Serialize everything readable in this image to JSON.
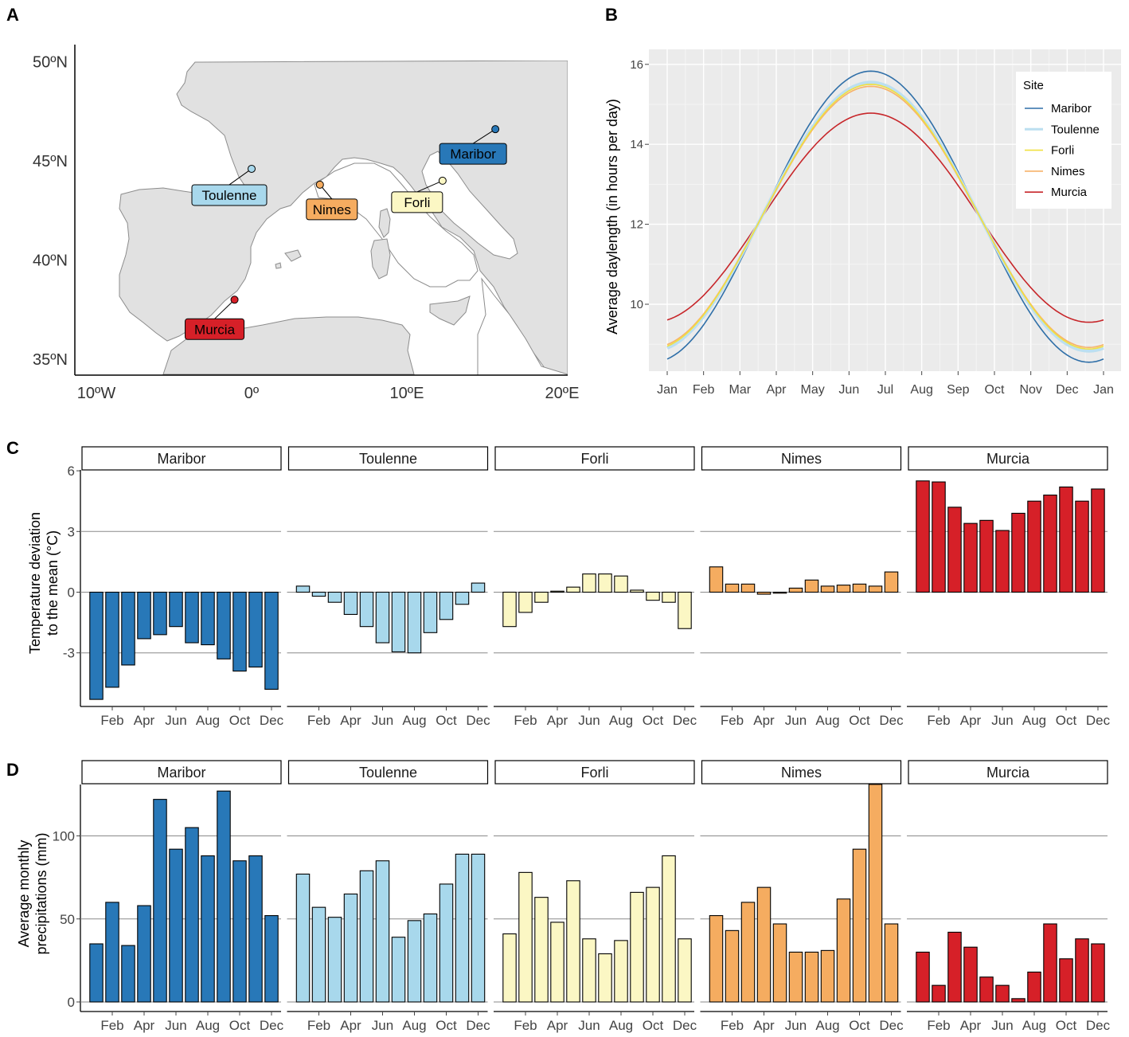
{
  "panels": {
    "a": "A",
    "b": "B",
    "c": "C",
    "d": "D"
  },
  "colors": {
    "Maribor": "#2878b8",
    "Toulenne": "#a8d8ec",
    "Forli": "#fbf7c4",
    "Nimes": "#f5ac60",
    "Murcia": "#d62028",
    "Toulenne_line": "#bcdff0",
    "Forli_line": "#f0e040",
    "Nimes_line": "#f7b26a",
    "Maribor_line": "#2f6fa8",
    "Murcia_line": "#c7262a",
    "land": "#e1e1e1",
    "border": "#8c8c8c",
    "grid_bg": "#ebebeb"
  },
  "map": {
    "lat_labels": [
      "50ºN",
      "45ºN",
      "40ºN",
      "35ºN"
    ],
    "lon_labels": [
      "10ºW",
      "0º",
      "10ºE",
      "20ºE"
    ],
    "sites": [
      {
        "name": "Maribor",
        "lat": 46.6,
        "lon": 15.7
      },
      {
        "name": "Toulenne",
        "lat": 44.6,
        "lon": 0.0
      },
      {
        "name": "Nimes",
        "lat": 43.8,
        "lon": 4.4
      },
      {
        "name": "Forli",
        "lat": 44.0,
        "lon": 12.3
      },
      {
        "name": "Murcia",
        "lat": 38.0,
        "lon": -1.1
      }
    ]
  },
  "chart_data": [
    {
      "type": "line",
      "panel": "B",
      "title": "",
      "ylabel": "Average daylength (in hours per day)",
      "xlabel": "",
      "x_ticks": [
        "Jan",
        "Feb",
        "Mar",
        "Apr",
        "May",
        "Jun",
        "Jul",
        "Aug",
        "Sep",
        "Oct",
        "Nov",
        "Dec",
        "Jan"
      ],
      "y_ticks": [
        "10",
        "12",
        "14",
        "16"
      ],
      "ylim": [
        8.3,
        16.4
      ],
      "legend_title": "Site",
      "legend_position": "top-right",
      "series": [
        {
          "name": "Maribor",
          "min": 8.55,
          "max": 15.83
        },
        {
          "name": "Toulenne",
          "min": 8.83,
          "max": 15.55
        },
        {
          "name": "Forli",
          "min": 8.88,
          "max": 15.5
        },
        {
          "name": "Nimes",
          "min": 8.92,
          "max": 15.45
        },
        {
          "name": "Murcia",
          "min": 9.55,
          "max": 14.78
        }
      ]
    },
    {
      "type": "bar",
      "panel": "C",
      "ylabel_lines": [
        "Temperature deviation",
        "to the mean (°C)"
      ],
      "y_ticks": [
        "-3",
        "0",
        "3",
        "6"
      ],
      "ylim": [
        -5.8,
        6.1
      ],
      "x_ticks": [
        "Feb",
        "Apr",
        "Jun",
        "Aug",
        "Oct",
        "Dec"
      ],
      "months": [
        "Jan",
        "Feb",
        "Mar",
        "Apr",
        "May",
        "Jun",
        "Jul",
        "Aug",
        "Sep",
        "Oct",
        "Nov",
        "Dec"
      ],
      "series": [
        {
          "name": "Maribor",
          "values": [
            -5.3,
            -4.7,
            -3.6,
            -2.3,
            -2.1,
            -1.7,
            -2.5,
            -2.6,
            -3.3,
            -3.9,
            -3.7,
            -4.8
          ]
        },
        {
          "name": "Toulenne",
          "values": [
            0.3,
            -0.2,
            -0.5,
            -1.1,
            -1.7,
            -2.5,
            -2.95,
            -3.0,
            -2.0,
            -1.35,
            -0.6,
            0.45
          ]
        },
        {
          "name": "Forli",
          "values": [
            -1.7,
            -1.0,
            -0.5,
            0.05,
            0.25,
            0.9,
            0.9,
            0.8,
            0.1,
            -0.4,
            -0.5,
            -1.8
          ]
        },
        {
          "name": "Nimes",
          "values": [
            1.25,
            0.4,
            0.4,
            -0.1,
            -0.05,
            0.2,
            0.6,
            0.3,
            0.35,
            0.4,
            0.3,
            1.0
          ]
        },
        {
          "name": "Murcia",
          "values": [
            5.5,
            5.45,
            4.2,
            3.4,
            3.55,
            3.05,
            3.9,
            4.5,
            4.8,
            5.2,
            4.5,
            5.1
          ]
        }
      ]
    },
    {
      "type": "bar",
      "panel": "D",
      "ylabel_lines": [
        "Average monthly",
        "precipitations (mm)"
      ],
      "y_ticks": [
        "0",
        "50",
        "100"
      ],
      "ylim": [
        -6,
        131
      ],
      "x_ticks": [
        "Feb",
        "Apr",
        "Jun",
        "Aug",
        "Oct",
        "Dec"
      ],
      "months": [
        "Jan",
        "Feb",
        "Mar",
        "Apr",
        "May",
        "Jun",
        "Jul",
        "Aug",
        "Sep",
        "Oct",
        "Nov",
        "Dec"
      ],
      "series": [
        {
          "name": "Maribor",
          "values": [
            35,
            60,
            34,
            58,
            122,
            92,
            105,
            88,
            127,
            85,
            88,
            52
          ]
        },
        {
          "name": "Toulenne",
          "values": [
            77,
            57,
            51,
            65,
            79,
            85,
            39,
            49,
            53,
            71,
            89,
            89
          ]
        },
        {
          "name": "Forli",
          "values": [
            41,
            78,
            63,
            48,
            73,
            38,
            29,
            37,
            66,
            69,
            88,
            38
          ]
        },
        {
          "name": "Nimes",
          "values": [
            52,
            43,
            60,
            69,
            47,
            30,
            30,
            31,
            62,
            92,
            131,
            47
          ]
        },
        {
          "name": "Murcia",
          "values": [
            30,
            10,
            42,
            33,
            15,
            10,
            2,
            18,
            47,
            26,
            38,
            35
          ]
        }
      ]
    }
  ]
}
